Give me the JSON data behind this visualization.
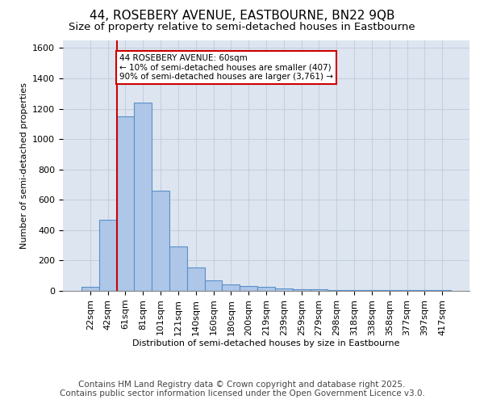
{
  "title1": "44, ROSEBERY AVENUE, EASTBOURNE, BN22 9QB",
  "title2": "Size of property relative to semi-detached houses in Eastbourne",
  "xlabel": "Distribution of semi-detached houses by size in Eastbourne",
  "ylabel": "Number of semi-detached properties",
  "categories": [
    "22sqm",
    "42sqm",
    "61sqm",
    "81sqm",
    "101sqm",
    "121sqm",
    "140sqm",
    "160sqm",
    "180sqm",
    "200sqm",
    "219sqm",
    "239sqm",
    "259sqm",
    "279sqm",
    "298sqm",
    "318sqm",
    "338sqm",
    "358sqm",
    "377sqm",
    "397sqm",
    "417sqm"
  ],
  "values": [
    25,
    470,
    1150,
    1240,
    660,
    295,
    155,
    70,
    40,
    32,
    26,
    16,
    11,
    9,
    6,
    6,
    6,
    5,
    4,
    6,
    6
  ],
  "bar_color": "#aec6e8",
  "bar_edge_color": "#5b8fc9",
  "annotation_text": "44 ROSEBERY AVENUE: 60sqm\n← 10% of semi-detached houses are smaller (407)\n90% of semi-detached houses are larger (3,761) →",
  "annotation_box_color": "#ffffff",
  "annotation_box_edge": "#cc0000",
  "red_line_color": "#cc0000",
  "ylim": [
    0,
    1650
  ],
  "yticks": [
    0,
    200,
    400,
    600,
    800,
    1000,
    1200,
    1400,
    1600
  ],
  "grid_color": "#c5d0e0",
  "background_color": "#dde6f0",
  "footer1": "Contains HM Land Registry data © Crown copyright and database right 2025.",
  "footer2": "Contains public sector information licensed under the Open Government Licence v3.0.",
  "title_fontsize": 11,
  "subtitle_fontsize": 9.5,
  "footer_fontsize": 7.5,
  "axis_fontsize": 8,
  "tick_fontsize": 8,
  "annot_fontsize": 7.5,
  "ylabel_fontsize": 8
}
